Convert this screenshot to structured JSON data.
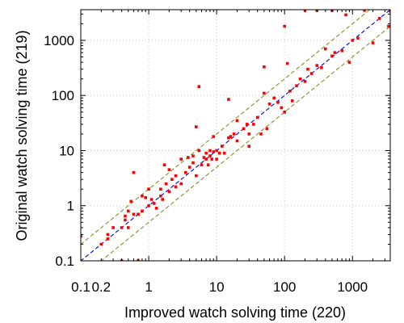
{
  "chart_data": {
    "type": "scatter",
    "title": "",
    "xlabel": "Improved watch solving time (220)",
    "ylabel": "Original watch solving time (219)",
    "x_scale": "log",
    "y_scale": "log",
    "xlim": [
      0.1,
      3600
    ],
    "ylim": [
      0.1,
      3600
    ],
    "grid": true,
    "x_ticks": [
      0.1,
      0.2,
      1,
      10,
      100,
      1000
    ],
    "x_tick_labels": [
      "0.1",
      "0.2",
      "1",
      "10",
      "100",
      "1000"
    ],
    "y_ticks": [
      0.1,
      1,
      10,
      100,
      1000
    ],
    "y_tick_labels": [
      "0.1",
      "1",
      "10",
      "100",
      "1000"
    ],
    "reference_lines": [
      {
        "kind": "diagonal",
        "factor": 1,
        "color": "#0000dd",
        "style": "dashed"
      },
      {
        "kind": "diagonal",
        "factor": 2,
        "color": "#8b8b2a",
        "style": "dashed"
      },
      {
        "kind": "diagonal",
        "factor": 0.5,
        "color": "#8b8b2a",
        "style": "dashed"
      }
    ],
    "marker_color": "#ff0000",
    "points": [
      [
        0.1,
        0.1
      ],
      [
        0.1,
        0.28
      ],
      [
        0.2,
        0.2
      ],
      [
        0.25,
        0.25
      ],
      [
        0.25,
        0.3
      ],
      [
        0.3,
        0.4
      ],
      [
        0.4,
        0.1
      ],
      [
        0.4,
        0.4
      ],
      [
        0.45,
        0.55
      ],
      [
        0.45,
        0.65
      ],
      [
        0.5,
        0.8
      ],
      [
        0.5,
        0.4
      ],
      [
        0.55,
        1.2
      ],
      [
        0.6,
        4.0
      ],
      [
        0.6,
        0.7
      ],
      [
        0.7,
        0.7
      ],
      [
        0.7,
        0.1
      ],
      [
        0.8,
        1.5
      ],
      [
        0.8,
        0.8
      ],
      [
        0.9,
        1.4
      ],
      [
        1.0,
        1.0
      ],
      [
        1.0,
        2.0
      ],
      [
        1.1,
        1.3
      ],
      [
        1.2,
        1.1
      ],
      [
        1.3,
        0.9
      ],
      [
        1.5,
        2.0
      ],
      [
        1.5,
        1.5
      ],
      [
        1.6,
        1.3
      ],
      [
        1.7,
        5.5
      ],
      [
        1.8,
        2.5
      ],
      [
        2.0,
        1.8
      ],
      [
        2.0,
        4.5
      ],
      [
        2.2,
        3.0
      ],
      [
        2.5,
        2.2
      ],
      [
        2.5,
        3.5
      ],
      [
        3.0,
        2.5
      ],
      [
        3.0,
        7.0
      ],
      [
        3.5,
        4.0
      ],
      [
        3.8,
        7.5
      ],
      [
        4.0,
        5.0
      ],
      [
        4.5,
        8.0
      ],
      [
        4.5,
        6.0
      ],
      [
        5.0,
        27
      ],
      [
        5.0,
        3.5
      ],
      [
        5.5,
        145
      ],
      [
        5.5,
        10
      ],
      [
        6.0,
        5.5
      ],
      [
        6.5,
        7.5
      ],
      [
        7.0,
        9.0
      ],
      [
        7.0,
        7.0
      ],
      [
        7.5,
        5.5
      ],
      [
        8.0,
        10
      ],
      [
        8.0,
        8.0
      ],
      [
        8.5,
        7.0
      ],
      [
        9.0,
        9.5
      ],
      [
        9.0,
        18
      ],
      [
        10,
        7.0
      ],
      [
        10,
        10
      ],
      [
        11,
        9.0
      ],
      [
        12,
        12
      ],
      [
        13,
        9.0
      ],
      [
        15,
        85
      ],
      [
        15,
        17
      ],
      [
        16,
        18
      ],
      [
        18,
        20
      ],
      [
        20,
        35
      ],
      [
        20,
        15
      ],
      [
        25,
        25
      ],
      [
        28,
        30
      ],
      [
        30,
        12
      ],
      [
        30,
        20
      ],
      [
        35,
        30
      ],
      [
        40,
        40
      ],
      [
        45,
        20
      ],
      [
        50,
        110
      ],
      [
        50,
        330
      ],
      [
        55,
        25
      ],
      [
        60,
        70
      ],
      [
        70,
        90
      ],
      [
        80,
        75
      ],
      [
        90,
        60
      ],
      [
        100,
        50
      ],
      [
        100,
        1800
      ],
      [
        110,
        380
      ],
      [
        120,
        120
      ],
      [
        130,
        80
      ],
      [
        150,
        150
      ],
      [
        170,
        200
      ],
      [
        200,
        180
      ],
      [
        200,
        3500
      ],
      [
        220,
        300
      ],
      [
        250,
        250
      ],
      [
        300,
        350
      ],
      [
        300,
        3500
      ],
      [
        350,
        320
      ],
      [
        400,
        700
      ],
      [
        500,
        520
      ],
      [
        500,
        3500
      ],
      [
        550,
        600
      ],
      [
        700,
        650
      ],
      [
        800,
        2900
      ],
      [
        900,
        400
      ],
      [
        1000,
        1000
      ],
      [
        1200,
        1100
      ],
      [
        1500,
        3500
      ],
      [
        2000,
        900
      ],
      [
        2500,
        2500
      ],
      [
        3600,
        3600
      ],
      [
        3600,
        3400
      ],
      [
        3400,
        1800
      ]
    ]
  }
}
